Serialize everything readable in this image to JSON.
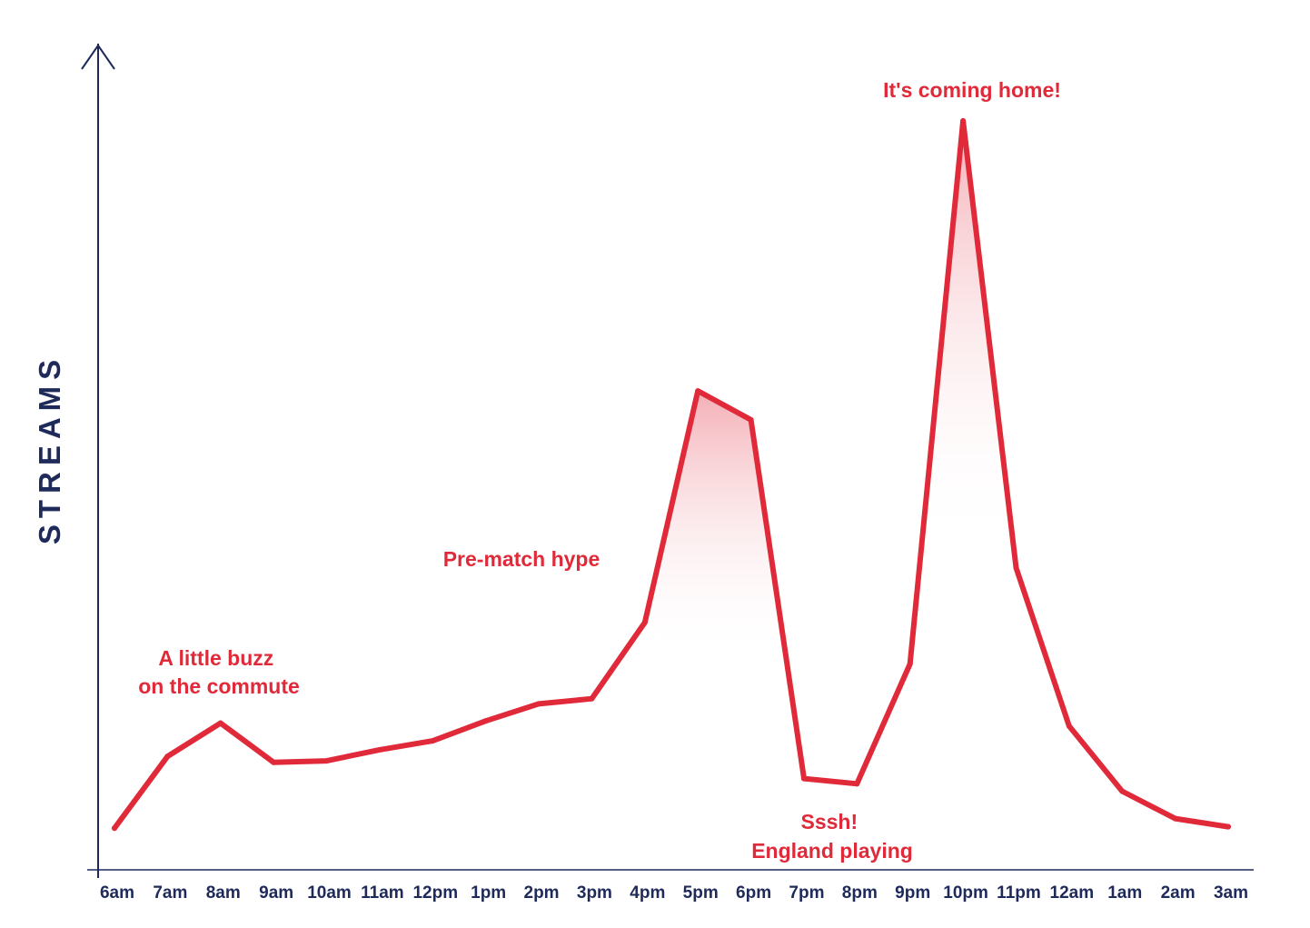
{
  "chart_data": {
    "type": "line",
    "ylabel": "STREAMS",
    "x": [
      "6am",
      "7am",
      "8am",
      "9am",
      "10am",
      "11am",
      "12pm",
      "1pm",
      "2pm",
      "3pm",
      "4pm",
      "5pm",
      "6pm",
      "7pm",
      "8pm",
      "9pm",
      "10pm",
      "11pm",
      "12am",
      "1am",
      "2am",
      "3am"
    ],
    "series": [
      {
        "values": [
          4.4,
          14.1,
          18.6,
          13.3,
          13.5,
          15.0,
          16.2,
          18.9,
          21.2,
          21.9,
          32.2,
          63.5,
          59.6,
          11.1,
          10.4,
          26.6,
          100,
          39.6,
          18.2,
          9.4,
          5.7,
          4.6
        ]
      }
    ],
    "ylim": [
      0,
      100
    ],
    "grid": false,
    "annotations": [
      {
        "id": "buzz",
        "lines": [
          "A little buzz",
          "on the commute"
        ]
      },
      {
        "id": "hype",
        "lines": [
          "Pre-match hype"
        ]
      },
      {
        "id": "sssh",
        "lines": [
          "Sssh!",
          "England playing"
        ]
      },
      {
        "id": "home",
        "lines": [
          "It's coming home!"
        ]
      }
    ],
    "colors": {
      "line": "#e02a3a",
      "axis": "#1e2a5a",
      "fill_top": "#f2a6ae"
    }
  }
}
